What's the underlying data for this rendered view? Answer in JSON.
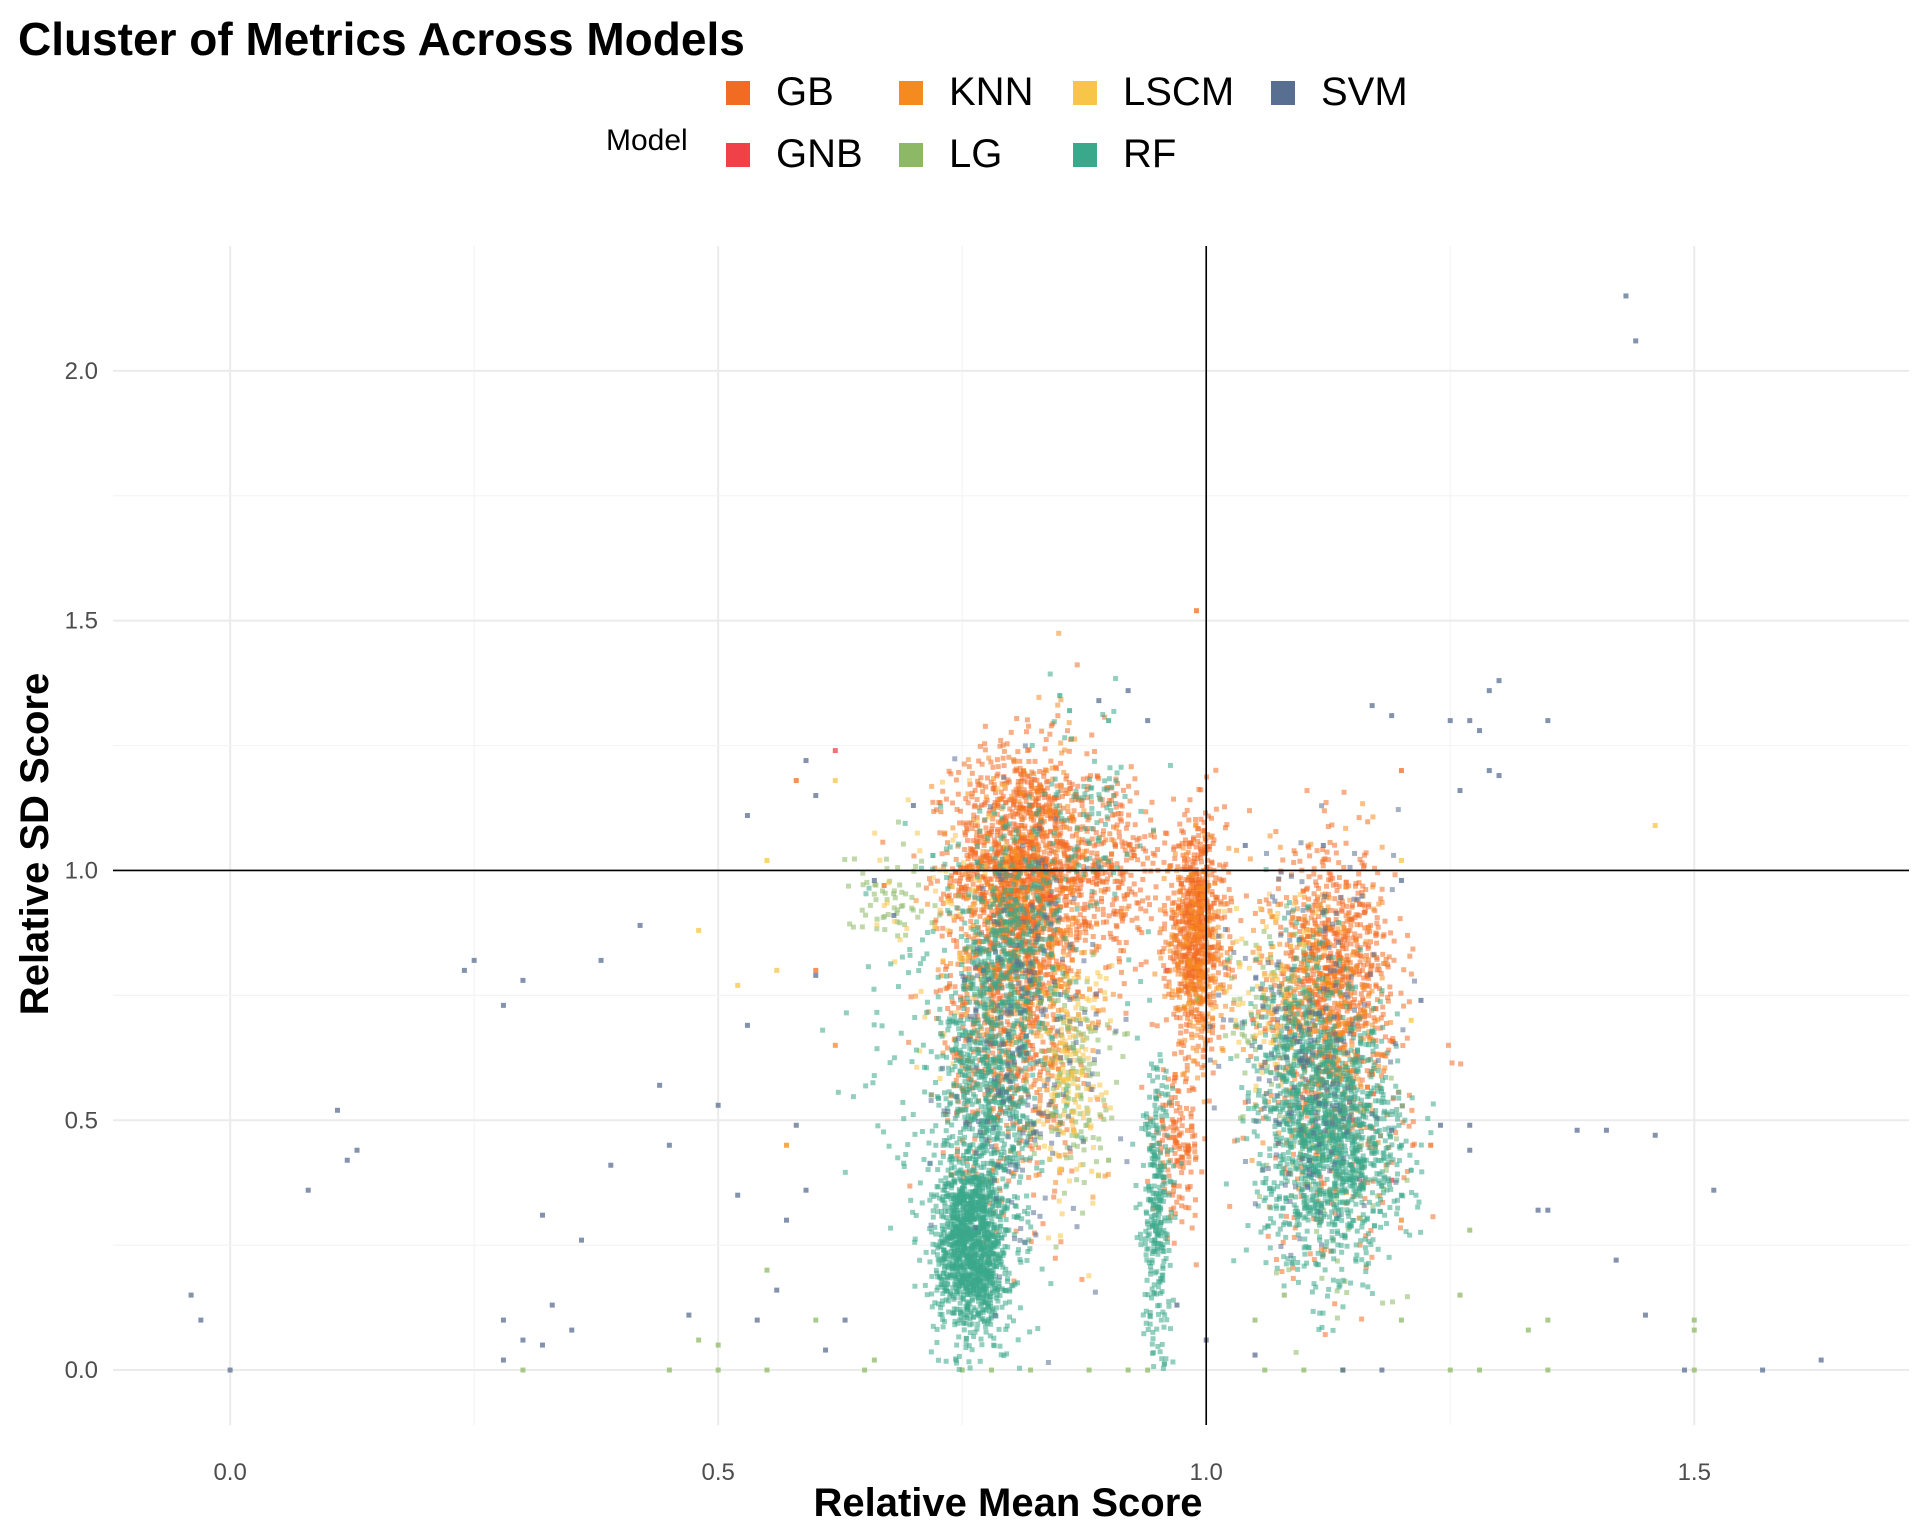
{
  "chart_data": {
    "type": "scatter",
    "title": "Cluster of Metrics Across Models",
    "xlabel": "Relative Mean Score",
    "ylabel": "Relative SD Score",
    "xlim": [
      -0.12,
      1.72
    ],
    "ylim": [
      -0.11,
      2.25
    ],
    "xticks": [
      0.0,
      0.5,
      1.0,
      1.5
    ],
    "yticks": [
      0.0,
      0.5,
      1.0,
      1.5,
      2.0
    ],
    "xtick_labels": [
      "0.0",
      "0.5",
      "1.0",
      "1.5"
    ],
    "ytick_labels": [
      "0.0",
      "0.5",
      "1.0",
      "1.5",
      "2.0"
    ],
    "reference_lines": {
      "x": 1.0,
      "y": 1.0
    },
    "grid": true,
    "legend": {
      "title": "Model",
      "placement": "top"
    },
    "series": [
      {
        "name": "GB",
        "color": "#F26B22",
        "clusters": [
          {
            "x": 0.81,
            "y": 1.0,
            "sx": 0.035,
            "sy": 0.12,
            "n": 1400
          },
          {
            "x": 0.8,
            "y": 0.7,
            "sx": 0.035,
            "sy": 0.18,
            "n": 700
          },
          {
            "x": 0.99,
            "y": 0.88,
            "sx": 0.015,
            "sy": 0.11,
            "n": 700
          },
          {
            "x": 0.97,
            "y": 0.45,
            "sx": 0.012,
            "sy": 0.07,
            "n": 150
          },
          {
            "x": 1.13,
            "y": 0.8,
            "sx": 0.03,
            "sy": 0.12,
            "n": 700
          },
          {
            "x": 1.13,
            "y": 0.55,
            "sx": 0.04,
            "sy": 0.18,
            "n": 300
          },
          {
            "x": 0.9,
            "y": 1.0,
            "sx": 0.03,
            "sy": 0.1,
            "n": 300
          }
        ],
        "extra": [
          [
            0.99,
            1.52
          ],
          [
            1.2,
            1.2
          ],
          [
            0.58,
            1.18
          ],
          [
            0.6,
            0.8
          ],
          [
            1.23,
            0.45
          ],
          [
            0.67,
            0.97
          ]
        ]
      },
      {
        "name": "GNB",
        "color": "#F04048",
        "clusters": [],
        "extra": [
          [
            0.62,
            1.24
          ],
          [
            0.84,
            0.95
          ],
          [
            1.13,
            0.77
          ],
          [
            1.15,
            0.5
          ],
          [
            0.8,
            0.85
          ],
          [
            0.96,
            0.8
          ],
          [
            1.19,
            0.38
          ]
        ]
      },
      {
        "name": "KNN",
        "color": "#F58A1F",
        "clusters": [
          {
            "x": 0.82,
            "y": 0.88,
            "sx": 0.04,
            "sy": 0.18,
            "n": 400
          },
          {
            "x": 1.12,
            "y": 0.72,
            "sx": 0.03,
            "sy": 0.15,
            "n": 300
          },
          {
            "x": 0.99,
            "y": 0.82,
            "sx": 0.015,
            "sy": 0.12,
            "n": 200
          }
        ],
        "extra": [
          [
            0.57,
            0.45
          ],
          [
            0.62,
            0.65
          ],
          [
            1.2,
            0.3
          ]
        ]
      },
      {
        "name": "LG",
        "color": "#8DB966",
        "clusters": [
          {
            "x": 0.86,
            "y": 0.6,
            "sx": 0.02,
            "sy": 0.1,
            "n": 150
          },
          {
            "x": 0.68,
            "y": 0.95,
            "sx": 0.025,
            "sy": 0.05,
            "n": 60
          },
          {
            "x": 1.06,
            "y": 0.75,
            "sx": 0.03,
            "sy": 0.08,
            "n": 60
          },
          {
            "x": 1.12,
            "y": 0.4,
            "sx": 0.04,
            "sy": 0.15,
            "n": 80
          }
        ],
        "extra": [
          [
            0.3,
            0.0
          ],
          [
            0.45,
            0.0
          ],
          [
            0.5,
            0.0
          ],
          [
            0.55,
            0.0
          ],
          [
            0.65,
            0.0
          ],
          [
            0.66,
            0.02
          ],
          [
            0.75,
            0.0
          ],
          [
            0.78,
            0.0
          ],
          [
            0.82,
            0.0
          ],
          [
            0.88,
            0.0
          ],
          [
            0.92,
            0.0
          ],
          [
            0.94,
            0.0
          ],
          [
            1.06,
            0.0
          ],
          [
            1.1,
            0.0
          ],
          [
            1.14,
            0.0
          ],
          [
            1.25,
            0.0
          ],
          [
            1.28,
            0.0
          ],
          [
            1.35,
            0.0
          ],
          [
            1.5,
            0.0
          ],
          [
            1.5,
            0.08
          ],
          [
            1.5,
            0.1
          ],
          [
            1.2,
            0.1
          ],
          [
            1.33,
            0.08
          ],
          [
            1.35,
            0.1
          ],
          [
            1.27,
            0.28
          ],
          [
            0.5,
            0.05
          ],
          [
            0.48,
            0.06
          ],
          [
            0.6,
            0.1
          ],
          [
            0.55,
            0.2
          ],
          [
            0.9,
            0.42
          ],
          [
            0.88,
            0.5
          ],
          [
            1.05,
            0.1
          ],
          [
            1.08,
            0.15
          ],
          [
            1.26,
            0.15
          ]
        ]
      },
      {
        "name": "LSCM",
        "color": "#F7C548",
        "clusters": [
          {
            "x": 0.86,
            "y": 0.6,
            "sx": 0.02,
            "sy": 0.12,
            "n": 150
          },
          {
            "x": 1.07,
            "y": 0.75,
            "sx": 0.03,
            "sy": 0.1,
            "n": 100
          },
          {
            "x": 0.74,
            "y": 0.9,
            "sx": 0.04,
            "sy": 0.15,
            "n": 80
          }
        ],
        "extra": [
          [
            1.46,
            1.09
          ],
          [
            0.55,
            1.02
          ],
          [
            0.48,
            0.88
          ],
          [
            0.52,
            0.77
          ],
          [
            0.56,
            0.8
          ],
          [
            0.62,
            1.18
          ],
          [
            1.2,
            1.02
          ],
          [
            1.21,
            0.7
          ],
          [
            0.85,
            0.4
          ]
        ]
      },
      {
        "name": "RF",
        "color": "#3AA88A",
        "clusters": [
          {
            "x": 0.76,
            "y": 0.25,
            "sx": 0.018,
            "sy": 0.09,
            "n": 1300
          },
          {
            "x": 0.78,
            "y": 0.55,
            "sx": 0.025,
            "sy": 0.15,
            "n": 600
          },
          {
            "x": 0.8,
            "y": 0.85,
            "sx": 0.025,
            "sy": 0.12,
            "n": 400
          },
          {
            "x": 0.95,
            "y": 0.3,
            "sx": 0.008,
            "sy": 0.15,
            "n": 300
          },
          {
            "x": 1.13,
            "y": 0.45,
            "sx": 0.035,
            "sy": 0.12,
            "n": 1200
          },
          {
            "x": 1.1,
            "y": 0.65,
            "sx": 0.025,
            "sy": 0.12,
            "n": 300
          },
          {
            "x": 0.88,
            "y": 1.1,
            "sx": 0.03,
            "sy": 0.1,
            "n": 100
          },
          {
            "x": 0.74,
            "y": 0.6,
            "sx": 0.05,
            "sy": 0.25,
            "n": 200
          }
        ],
        "extra": [
          [
            0.85,
            1.35
          ],
          [
            0.86,
            1.32
          ],
          [
            0.9,
            1.3
          ],
          [
            1.2,
            0.45
          ],
          [
            1.21,
            0.4
          ],
          [
            1.2,
            0.35
          ],
          [
            0.72,
            1.03
          ]
        ]
      },
      {
        "name": "SVM",
        "color": "#596F91",
        "clusters": [
          {
            "x": 0.82,
            "y": 0.65,
            "sx": 0.04,
            "sy": 0.2,
            "n": 200
          },
          {
            "x": 1.1,
            "y": 0.65,
            "sx": 0.04,
            "sy": 0.2,
            "n": 200
          }
        ],
        "extra": [
          [
            1.43,
            2.15
          ],
          [
            1.44,
            2.06
          ],
          [
            1.3,
            1.38
          ],
          [
            1.29,
            1.36
          ],
          [
            1.27,
            1.3
          ],
          [
            1.28,
            1.28
          ],
          [
            1.29,
            1.2
          ],
          [
            1.3,
            1.19
          ],
          [
            1.25,
            1.3
          ],
          [
            1.35,
            1.3
          ],
          [
            1.17,
            1.33
          ],
          [
            1.19,
            1.31
          ],
          [
            1.26,
            1.16
          ],
          [
            0.92,
            1.36
          ],
          [
            0.89,
            1.34
          ],
          [
            0.94,
            1.3
          ],
          [
            0.59,
            1.22
          ],
          [
            0.6,
            1.15
          ],
          [
            0.53,
            1.11
          ],
          [
            0.25,
            0.82
          ],
          [
            0.24,
            0.8
          ],
          [
            0.28,
            0.73
          ],
          [
            0.3,
            0.78
          ],
          [
            0.38,
            0.82
          ],
          [
            0.42,
            0.89
          ],
          [
            0.11,
            0.52
          ],
          [
            0.13,
            0.44
          ],
          [
            0.12,
            0.42
          ],
          [
            0.08,
            0.36
          ],
          [
            0.39,
            0.41
          ],
          [
            0.32,
            0.31
          ],
          [
            0.36,
            0.26
          ],
          [
            0.33,
            0.13
          ],
          [
            0.28,
            0.1
          ],
          [
            0.3,
            0.06
          ],
          [
            0.35,
            0.08
          ],
          [
            0.32,
            0.05
          ],
          [
            0.28,
            0.02
          ],
          [
            -0.04,
            0.15
          ],
          [
            -0.03,
            0.1
          ],
          [
            0.0,
            0.0
          ],
          [
            0.44,
            0.57
          ],
          [
            0.45,
            0.45
          ],
          [
            0.5,
            0.53
          ],
          [
            0.52,
            0.35
          ],
          [
            0.53,
            0.69
          ],
          [
            0.57,
            0.3
          ],
          [
            0.59,
            0.36
          ],
          [
            0.56,
            0.16
          ],
          [
            0.54,
            0.1
          ],
          [
            0.47,
            0.11
          ],
          [
            0.61,
            0.04
          ],
          [
            0.63,
            0.1
          ],
          [
            1.38,
            0.48
          ],
          [
            1.42,
            0.22
          ],
          [
            1.41,
            0.48
          ],
          [
            1.46,
            0.47
          ],
          [
            1.45,
            0.11
          ],
          [
            1.35,
            0.32
          ],
          [
            1.34,
            0.32
          ],
          [
            1.52,
            0.36
          ],
          [
            1.49,
            0.0
          ],
          [
            1.57,
            0.0
          ],
          [
            1.63,
            0.02
          ],
          [
            1.27,
            0.44
          ],
          [
            1.27,
            0.49
          ],
          [
            1.24,
            0.49
          ],
          [
            1.19,
            0.48
          ],
          [
            1.14,
            0.0
          ],
          [
            1.18,
            0.0
          ],
          [
            1.05,
            0.03
          ],
          [
            1.0,
            0.06
          ],
          [
            0.97,
            0.13
          ],
          [
            1.04,
            1.05
          ],
          [
            1.12,
            1.05
          ],
          [
            1.2,
            0.98
          ],
          [
            1.22,
            0.74
          ],
          [
            0.66,
            0.98
          ],
          [
            0.68,
            0.91
          ],
          [
            0.6,
            0.79
          ],
          [
            0.58,
            0.49
          ],
          [
            0.7,
            1.13
          ]
        ]
      }
    ]
  }
}
